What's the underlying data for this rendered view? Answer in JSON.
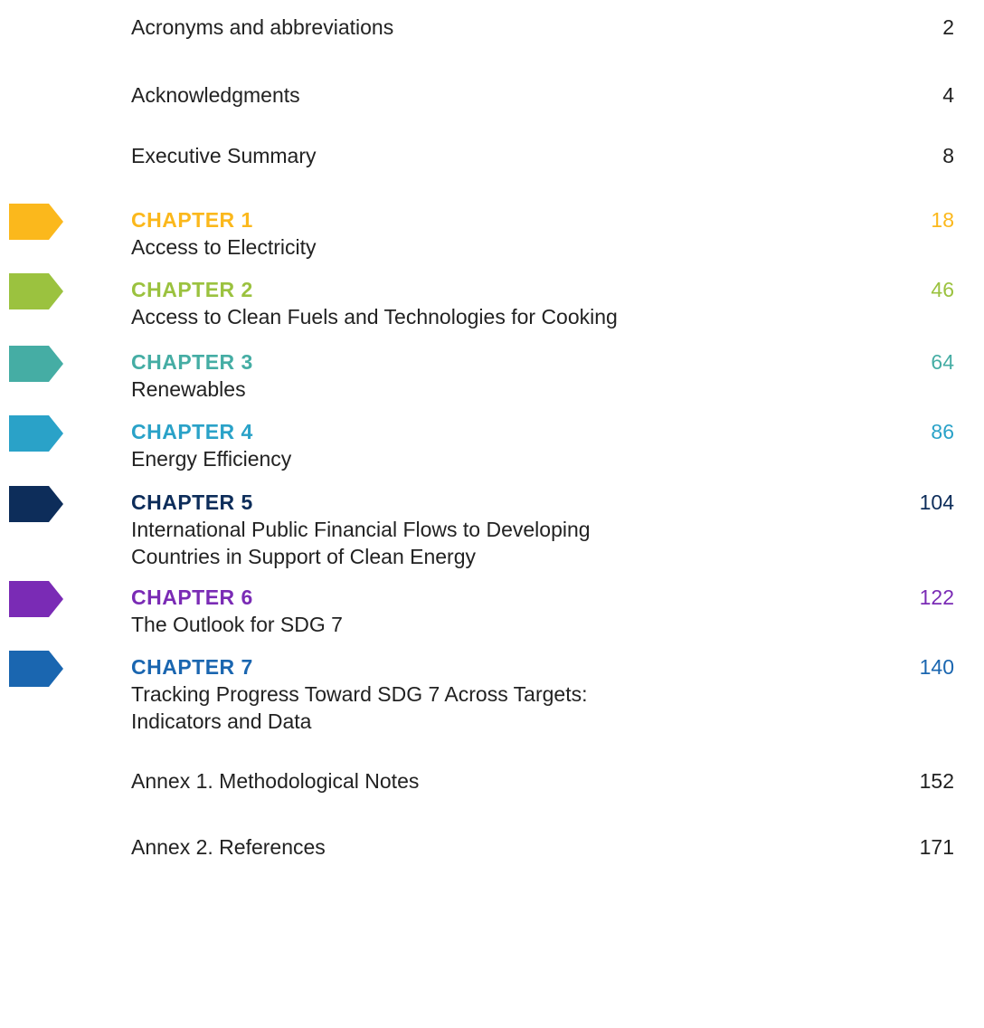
{
  "entries": [
    {
      "title": [
        "Acronyms and abbreviations"
      ],
      "page": "2"
    },
    {
      "title": [
        "Acknowledgments"
      ],
      "page": "4"
    },
    {
      "title": [
        "Executive Summary"
      ],
      "page": "8"
    },
    {
      "label": "CHAPTER 1",
      "title": [
        "Access to Electricity"
      ],
      "page": "18",
      "color": "#fbb81c"
    },
    {
      "label": "CHAPTER 2",
      "title": [
        "Access to Clean Fuels and Technologies for Cooking"
      ],
      "page": "46",
      "color": "#9bc23f"
    },
    {
      "label": "CHAPTER 3",
      "title": [
        "Renewables"
      ],
      "page": "64",
      "color": "#45ada4"
    },
    {
      "label": "CHAPTER 4",
      "title": [
        "Energy Efficiency"
      ],
      "page": "86",
      "color": "#2aa2c8"
    },
    {
      "label": "CHAPTER 5",
      "title": [
        "International Public Financial Flows to Developing",
        "Countries in Support of Clean Energy"
      ],
      "page": "104",
      "color": "#0d2d5a"
    },
    {
      "label": "CHAPTER 6",
      "title": [
        "The Outlook for SDG 7"
      ],
      "page": "122",
      "color": "#7a2bb5"
    },
    {
      "label": "CHAPTER 7",
      "title": [
        "Tracking Progress Toward SDG 7 Across Targets:",
        "Indicators and Data"
      ],
      "page": "140",
      "color": "#1a66b0"
    },
    {
      "title": [
        "Annex 1. Methodological Notes"
      ],
      "page": "152"
    },
    {
      "title": [
        "Annex 2. References"
      ],
      "page": "171"
    }
  ]
}
